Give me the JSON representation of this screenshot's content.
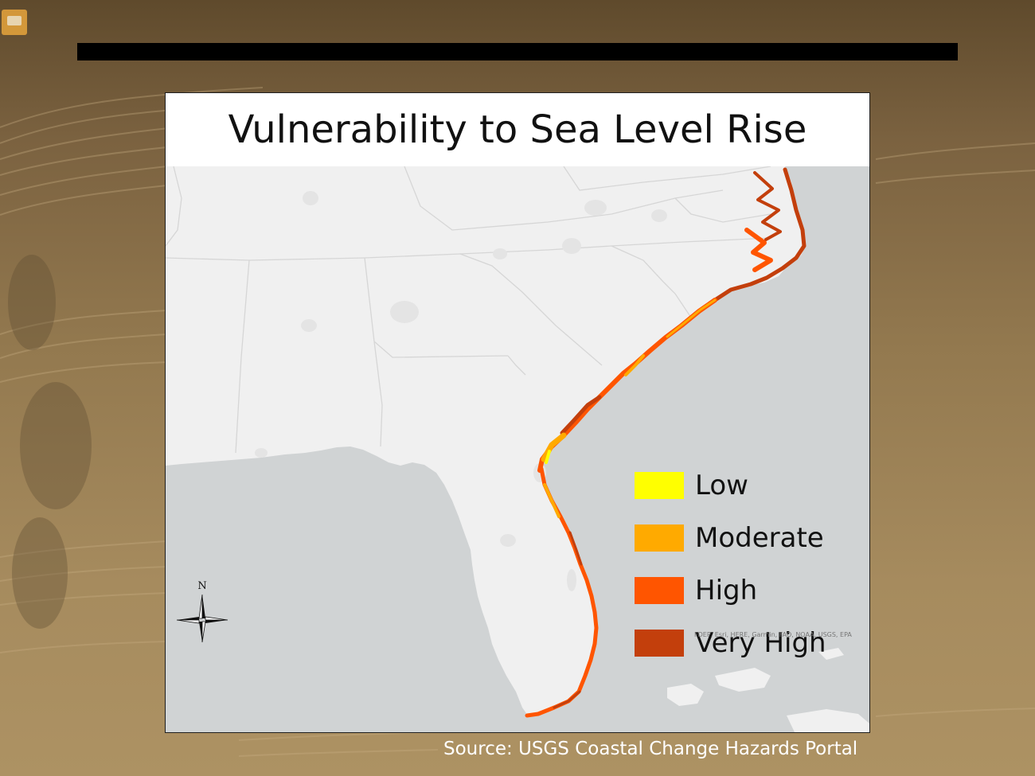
{
  "slide": {
    "title": "Vulnerability to Sea Level Rise",
    "source": "Source: USGS Coastal Change Hazards Portal"
  },
  "map": {
    "compass_label": "N",
    "attribution": "FDEP, Esri, HERE, Garmin, FAO, NOAA, USGS, EPA",
    "land_color": "#f0f0f0",
    "water_color": "#d0d3d4",
    "border_color": "#d6d6d6"
  },
  "legend": {
    "items": [
      {
        "label": "Low",
        "color": "#ffff00"
      },
      {
        "label": "Moderate",
        "color": "#ffaa00"
      },
      {
        "label": "High",
        "color": "#ff5500"
      },
      {
        "label": "Very High",
        "color": "#c33f0c"
      }
    ]
  },
  "icons": {
    "comment": "comment-icon",
    "compass": "compass-icon"
  }
}
